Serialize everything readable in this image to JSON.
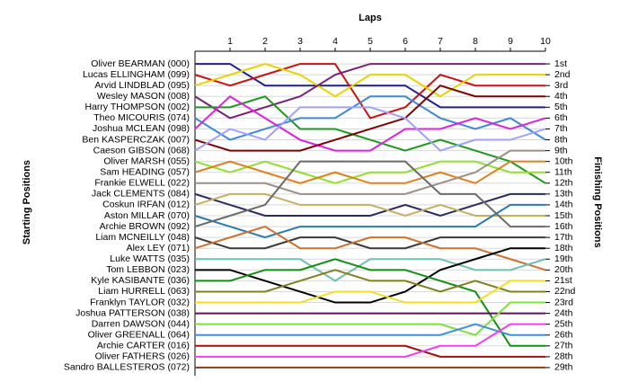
{
  "chart_data": {
    "type": "line",
    "title": "Laps",
    "y_label_left": "Starting Positions",
    "y_label_right": "Finishing Positions",
    "x": [
      0,
      1,
      2,
      3,
      4,
      5,
      6,
      7,
      8,
      9,
      10
    ],
    "xlim": [
      0,
      10
    ],
    "xticks": [
      1,
      2,
      3,
      4,
      5,
      6,
      7,
      8,
      9,
      10
    ],
    "ylim": [
      30,
      0
    ],
    "yticks": [
      {
        "value": 1,
        "label": "1st"
      },
      {
        "value": 2,
        "label": "2nd"
      },
      {
        "value": 3,
        "label": "3rd"
      },
      {
        "value": 4,
        "label": "4th"
      },
      {
        "value": 5,
        "label": "5th"
      },
      {
        "value": 6,
        "label": "6th"
      },
      {
        "value": 7,
        "label": "7th"
      },
      {
        "value": 8,
        "label": "8th"
      },
      {
        "value": 9,
        "label": "9th"
      },
      {
        "value": 10,
        "label": "10th"
      },
      {
        "value": 11,
        "label": "11th"
      },
      {
        "value": 12,
        "label": "12th"
      },
      {
        "value": 13,
        "label": "13th"
      },
      {
        "value": 14,
        "label": "14th"
      },
      {
        "value": 15,
        "label": "15th"
      },
      {
        "value": 16,
        "label": "16th"
      },
      {
        "value": 17,
        "label": "17th"
      },
      {
        "value": 18,
        "label": "18th"
      },
      {
        "value": 19,
        "label": "19th"
      },
      {
        "value": 20,
        "label": "20th"
      },
      {
        "value": 21,
        "label": "21st"
      },
      {
        "value": 22,
        "label": "22nd"
      },
      {
        "value": 23,
        "label": "23rd"
      },
      {
        "value": 24,
        "label": "24th"
      },
      {
        "value": 25,
        "label": "25th"
      },
      {
        "value": 26,
        "label": "26th"
      },
      {
        "value": 27,
        "label": "27th"
      },
      {
        "value": 28,
        "label": "28th"
      },
      {
        "value": 29,
        "label": "29th"
      }
    ],
    "grid": true,
    "series": [
      {
        "name": "Oliver BEARMAN (000)",
        "color": "#1f1f8f",
        "values": [
          1,
          1,
          3,
          3,
          3,
          3,
          3,
          5,
          5,
          5,
          5
        ]
      },
      {
        "name": "Lucas ELLINGHAM (099)",
        "color": "#cc1111",
        "values": [
          2,
          3,
          2,
          1,
          1,
          6,
          5,
          2,
          3,
          3,
          3
        ]
      },
      {
        "name": "Arvid LINDBLAD (095)",
        "color": "#e8d400",
        "values": [
          3,
          2,
          1,
          2,
          4,
          2,
          2,
          4,
          2,
          2,
          2
        ]
      },
      {
        "name": "Wesley MASON (008)",
        "color": "#7a1f7a",
        "values": [
          4,
          6,
          5,
          4,
          2,
          1,
          1,
          1,
          1,
          1,
          1
        ]
      },
      {
        "name": "Harry THOMPSON (002)",
        "color": "#1a9a1a",
        "values": [
          5,
          5,
          4,
          7,
          7,
          8,
          9,
          8,
          9,
          10,
          12
        ]
      },
      {
        "name": "Theo MICOURIS (074)",
        "color": "#3a8ad8",
        "values": [
          6,
          8,
          7,
          6,
          6,
          4,
          4,
          6,
          7,
          6,
          8
        ]
      },
      {
        "name": "Joshua MCLEAN (098)",
        "color": "#e020e0",
        "values": [
          7,
          4,
          6,
          8,
          9,
          9,
          7,
          7,
          6,
          7,
          6
        ]
      },
      {
        "name": "Ben KASPERCZAK (007)",
        "color": "#800000",
        "values": [
          8,
          9,
          9,
          9,
          8,
          7,
          6,
          3,
          4,
          4,
          4
        ]
      },
      {
        "name": "Caeson GIBSON (068)",
        "color": "#a0a0ff",
        "values": [
          9,
          7,
          8,
          5,
          5,
          5,
          6,
          9,
          8,
          8,
          7
        ]
      },
      {
        "name": "Oliver MARSH (055)",
        "color": "#90e030",
        "values": [
          10,
          11,
          10,
          11,
          12,
          11,
          11,
          10,
          10,
          11,
          11
        ]
      },
      {
        "name": "Sam HEADING (057)",
        "color": "#e08020",
        "values": [
          11,
          10,
          11,
          12,
          11,
          12,
          12,
          11,
          12,
          10,
          10
        ]
      },
      {
        "name": "Frankie ELWELL (022)",
        "color": "#9a8f8a",
        "values": [
          12,
          12,
          12,
          13,
          13,
          13,
          13,
          12,
          11,
          9,
          9
        ]
      },
      {
        "name": "Jack CLEMENTS (084)",
        "color": "#2a2a60",
        "values": [
          13,
          14,
          15,
          15,
          15,
          15,
          14,
          15,
          14,
          13,
          13
        ]
      },
      {
        "name": "Coskun IRFAN (012)",
        "color": "#c8b060",
        "values": [
          14,
          13,
          13,
          14,
          14,
          14,
          15,
          14,
          15,
          15,
          15
        ]
      },
      {
        "name": "Aston MILLAR (070)",
        "color": "#2a7ab0",
        "values": [
          15,
          16,
          17,
          16,
          16,
          16,
          16,
          16,
          16,
          14,
          14
        ]
      },
      {
        "name": "Archie BROWN (092)",
        "color": "#6a6a6a",
        "values": [
          16,
          15,
          14,
          10,
          10,
          10,
          10,
          13,
          13,
          16,
          16
        ]
      },
      {
        "name": "Liam MCNEILLY (048)",
        "color": "#3a3a3a",
        "values": [
          17,
          18,
          18,
          17,
          17,
          18,
          18,
          17,
          17,
          17,
          17
        ]
      },
      {
        "name": "Alex LEY (071)",
        "color": "#d07030",
        "values": [
          18,
          17,
          16,
          18,
          18,
          17,
          17,
          18,
          18,
          19,
          20
        ]
      },
      {
        "name": "Luke WATTS (035)",
        "color": "#70c0b0",
        "values": [
          19,
          19,
          19,
          19,
          21,
          19,
          19,
          19,
          20,
          20,
          19
        ]
      },
      {
        "name": "Tom LEBBON (023)",
        "color": "#000000",
        "values": [
          20,
          20,
          21,
          22,
          23,
          23,
          22,
          20,
          19,
          18,
          18
        ]
      },
      {
        "name": "Kyle KASIBANTE (036)",
        "color": "#109010",
        "values": [
          21,
          21,
          20,
          20,
          19,
          20,
          20,
          21,
          22,
          27,
          27
        ]
      },
      {
        "name": "Liam HURRELL (063)",
        "color": "#808020",
        "values": [
          22,
          22,
          22,
          21,
          20,
          21,
          21,
          22,
          21,
          22,
          22
        ]
      },
      {
        "name": "Franklyn TAYLOR (032)",
        "color": "#f0e020",
        "values": [
          23,
          23,
          23,
          23,
          22,
          22,
          23,
          23,
          23,
          21,
          21
        ]
      },
      {
        "name": "Joshua PATTERSON (038)",
        "color": "#601060",
        "values": [
          24,
          24,
          24,
          24,
          24,
          24,
          24,
          24,
          24,
          24,
          24
        ]
      },
      {
        "name": "Darren DAWSON (044)",
        "color": "#80e040",
        "values": [
          25,
          25,
          25,
          25,
          25,
          25,
          25,
          25,
          26,
          23,
          23
        ]
      },
      {
        "name": "Oliver GREENALL (064)",
        "color": "#4090e0",
        "values": [
          26,
          26,
          26,
          26,
          26,
          26,
          26,
          26,
          25,
          26,
          26
        ]
      },
      {
        "name": "Archie CARTER (016)",
        "color": "#a01010",
        "values": [
          27,
          27,
          27,
          27,
          27,
          27,
          27,
          28,
          28,
          28,
          28
        ]
      },
      {
        "name": "Oliver FATHERS (026)",
        "color": "#f040f0",
        "values": [
          28,
          28,
          28,
          28,
          28,
          28,
          28,
          27,
          27,
          25,
          25
        ]
      },
      {
        "name": "Sandro BALLESTEROS (072)",
        "color": "#804020",
        "values": [
          29,
          29,
          29,
          29,
          29,
          29,
          29,
          29,
          29,
          29,
          29
        ]
      }
    ]
  }
}
